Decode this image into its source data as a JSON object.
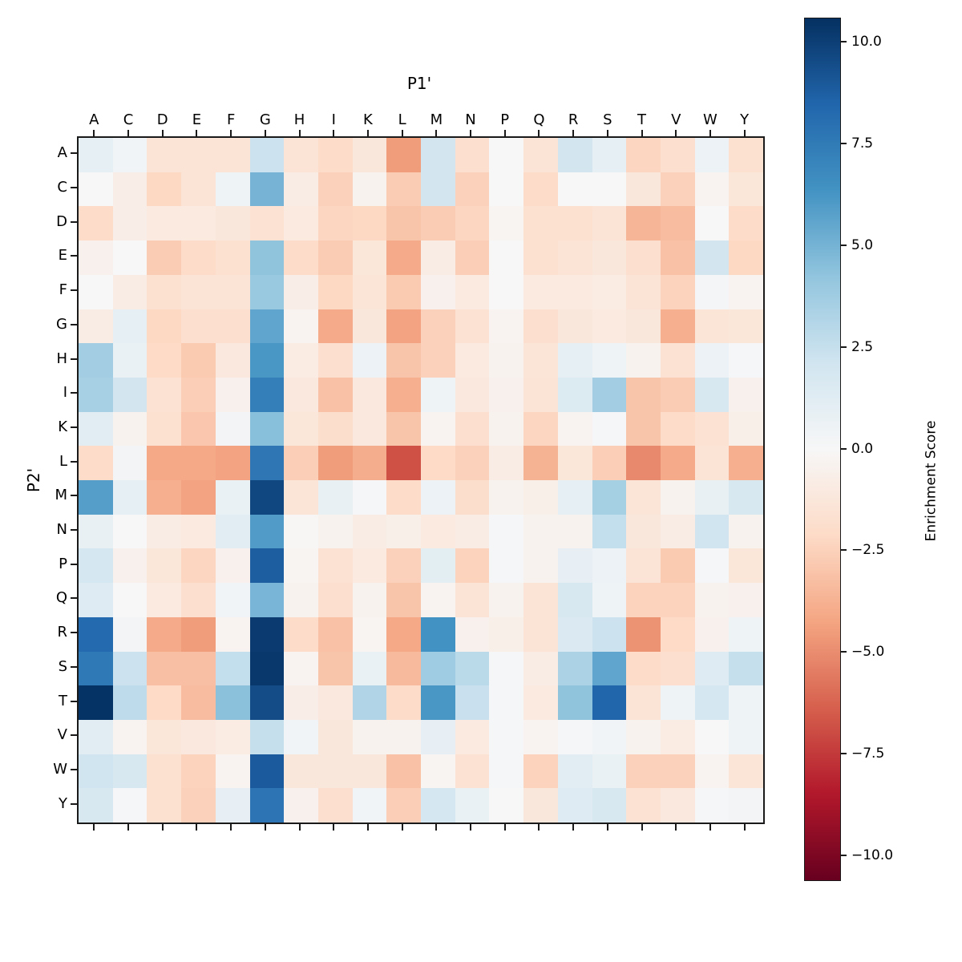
{
  "figure": {
    "x_axis_title": "P1'",
    "y_axis_title": "P2'"
  },
  "colorbar": {
    "label": "Enrichment Score",
    "tick_labels": [
      "10.0",
      "7.5",
      "5.0",
      "2.5",
      "0.0",
      "−2.5",
      "−5.0",
      "−7.5",
      "−10.0"
    ],
    "tick_values": [
      10.0,
      7.5,
      5.0,
      2.5,
      0.0,
      -2.5,
      -5.0,
      -7.5,
      -10.0
    ],
    "top_color": "#053061",
    "mid_color": "#f7f7f7",
    "bottom_color": "#67001f"
  },
  "chart_data": {
    "type": "heatmap",
    "title": "",
    "xlabel": "P1'",
    "ylabel": "P2'",
    "colormap": "RdBu",
    "vmin": -10.6,
    "vmax": 10.6,
    "legend_position": "right-colorbar",
    "colorbar_label": "Enrichment Score",
    "x_categories": [
      "A",
      "C",
      "D",
      "E",
      "F",
      "G",
      "H",
      "I",
      "K",
      "L",
      "M",
      "N",
      "P",
      "Q",
      "R",
      "S",
      "T",
      "V",
      "W",
      "Y"
    ],
    "y_categories": [
      "A",
      "C",
      "D",
      "E",
      "F",
      "G",
      "H",
      "I",
      "K",
      "L",
      "M",
      "N",
      "P",
      "Q",
      "R",
      "S",
      "T",
      "V",
      "W",
      "Y"
    ],
    "values": [
      [
        1.0,
        0.4,
        -1.5,
        -1.5,
        -1.5,
        2.3,
        -1.5,
        -2.0,
        -1.2,
        -4.5,
        2.0,
        -1.8,
        0.0,
        -1.5,
        2.0,
        1.0,
        -2.3,
        -1.8,
        0.6,
        -1.7
      ],
      [
        0.0,
        -0.7,
        -2.2,
        -1.5,
        0.5,
        5.0,
        -0.8,
        -2.5,
        -0.4,
        -2.7,
        2.0,
        -2.5,
        0.0,
        -2.0,
        0.0,
        0.0,
        -1.2,
        -2.5,
        -0.3,
        -1.3
      ],
      [
        -2.0,
        -0.7,
        -1.0,
        -1.0,
        -1.2,
        -1.6,
        -1.0,
        -2.3,
        -2.2,
        -3.0,
        -2.7,
        -2.3,
        -0.2,
        -1.7,
        -1.7,
        -1.5,
        -3.6,
        -3.3,
        0.0,
        -2.0
      ],
      [
        -0.5,
        0.0,
        -2.7,
        -2.0,
        -1.7,
        4.3,
        -2.0,
        -2.7,
        -1.3,
        -4.0,
        -0.8,
        -2.6,
        0.0,
        -1.7,
        -1.5,
        -1.2,
        -1.8,
        -3.1,
        2.0,
        -2.2
      ],
      [
        0.0,
        -0.8,
        -1.7,
        -1.5,
        -1.5,
        4.0,
        -0.7,
        -2.2,
        -1.4,
        -2.8,
        -0.5,
        -1.0,
        0.0,
        -1.0,
        -1.0,
        -0.9,
        -1.5,
        -2.4,
        0.2,
        -0.3
      ],
      [
        -0.8,
        1.0,
        -2.2,
        -1.8,
        -1.8,
        5.6,
        -0.3,
        -4.0,
        -1.2,
        -4.3,
        -2.5,
        -1.6,
        -0.3,
        -1.8,
        -1.2,
        -1.0,
        -1.2,
        -3.8,
        -1.4,
        -1.3
      ],
      [
        3.7,
        0.7,
        -2.1,
        -2.8,
        -1.1,
        6.2,
        -0.9,
        -1.8,
        0.6,
        -3.0,
        -2.5,
        -1.0,
        -0.4,
        -1.4,
        1.0,
        0.5,
        -0.4,
        -1.6,
        0.6,
        0.1
      ],
      [
        3.5,
        2.0,
        -1.6,
        -2.6,
        -0.5,
        7.3,
        -1.1,
        -3.1,
        -1.1,
        -3.8,
        0.5,
        -1.1,
        -0.5,
        -1.5,
        1.5,
        3.7,
        -3.0,
        -2.7,
        1.8,
        -0.5
      ],
      [
        1.2,
        -0.4,
        -1.7,
        -2.9,
        0.3,
        4.5,
        -1.3,
        -1.9,
        -1.1,
        -3.0,
        -0.3,
        -1.8,
        -0.4,
        -2.3,
        -0.3,
        0.1,
        -3.0,
        -2.0,
        -1.6,
        -0.6
      ],
      [
        -2.0,
        0.3,
        -4.1,
        -4.1,
        -4.3,
        7.7,
        -2.6,
        -4.5,
        -3.9,
        -6.8,
        -2.1,
        -2.5,
        -0.8,
        -3.7,
        -1.3,
        -2.6,
        -5.1,
        -4.0,
        -1.5,
        -3.8
      ],
      [
        5.9,
        1.0,
        -3.8,
        -4.3,
        0.7,
        9.7,
        -1.4,
        0.8,
        0.1,
        -2.0,
        0.6,
        -1.9,
        -0.4,
        -0.6,
        1.0,
        3.6,
        -1.4,
        -0.4,
        0.8,
        1.8
      ],
      [
        0.8,
        0.0,
        -0.8,
        -1.0,
        1.2,
        6.0,
        -0.1,
        -0.4,
        -0.8,
        -0.6,
        -1.0,
        -0.8,
        0.1,
        -0.4,
        -0.4,
        2.6,
        -1.2,
        -0.8,
        2.1,
        -0.4
      ],
      [
        1.9,
        -0.5,
        -1.3,
        -2.3,
        -0.5,
        8.8,
        -0.2,
        -1.6,
        -1.0,
        -2.5,
        1.1,
        -2.4,
        0.1,
        -0.4,
        0.9,
        0.6,
        -1.5,
        -2.8,
        0.1,
        -1.3
      ],
      [
        1.4,
        0.0,
        -1.0,
        -1.8,
        0.4,
        4.9,
        -0.4,
        -1.8,
        -0.4,
        -3.0,
        -0.3,
        -1.5,
        -0.4,
        -1.5,
        1.8,
        0.5,
        -2.4,
        -2.4,
        -0.4,
        -0.5
      ],
      [
        8.3,
        0.3,
        -4.0,
        -4.5,
        -0.3,
        10.2,
        -2.0,
        -3.1,
        -0.2,
        -4.1,
        6.4,
        -0.5,
        -0.6,
        -1.5,
        1.6,
        2.3,
        -4.8,
        -2.1,
        -0.5,
        0.5
      ],
      [
        7.6,
        2.3,
        -3.2,
        -3.2,
        2.6,
        10.3,
        -0.3,
        -3.0,
        0.7,
        -3.4,
        3.8,
        2.9,
        0.1,
        -0.8,
        3.4,
        5.6,
        -2.0,
        -1.8,
        1.4,
        2.5
      ],
      [
        10.5,
        2.8,
        -2.1,
        -3.3,
        4.4,
        9.5,
        -0.7,
        -1.1,
        3.2,
        -2.0,
        6.2,
        2.4,
        0.1,
        -1.0,
        4.3,
        8.5,
        -1.5,
        0.5,
        1.9,
        0.5
      ],
      [
        1.2,
        -0.3,
        -1.3,
        -1.1,
        -0.9,
        2.5,
        0.4,
        -1.2,
        -0.4,
        -0.4,
        0.9,
        -1.0,
        0.1,
        -0.3,
        0.1,
        0.4,
        -0.4,
        -0.9,
        0.0,
        0.5
      ],
      [
        2.1,
        1.8,
        -1.7,
        -2.4,
        -0.3,
        8.9,
        -1.2,
        -1.2,
        -1.2,
        -3.1,
        -0.2,
        -1.6,
        0.1,
        -2.4,
        1.2,
        0.7,
        -2.5,
        -2.5,
        -0.3,
        -1.4
      ],
      [
        1.8,
        0.1,
        -1.7,
        -2.5,
        0.9,
        7.8,
        -0.5,
        -1.8,
        0.4,
        -2.6,
        1.9,
        0.7,
        0.0,
        -1.2,
        1.4,
        1.8,
        -1.6,
        -1.1,
        0.1,
        0.3
      ]
    ]
  }
}
